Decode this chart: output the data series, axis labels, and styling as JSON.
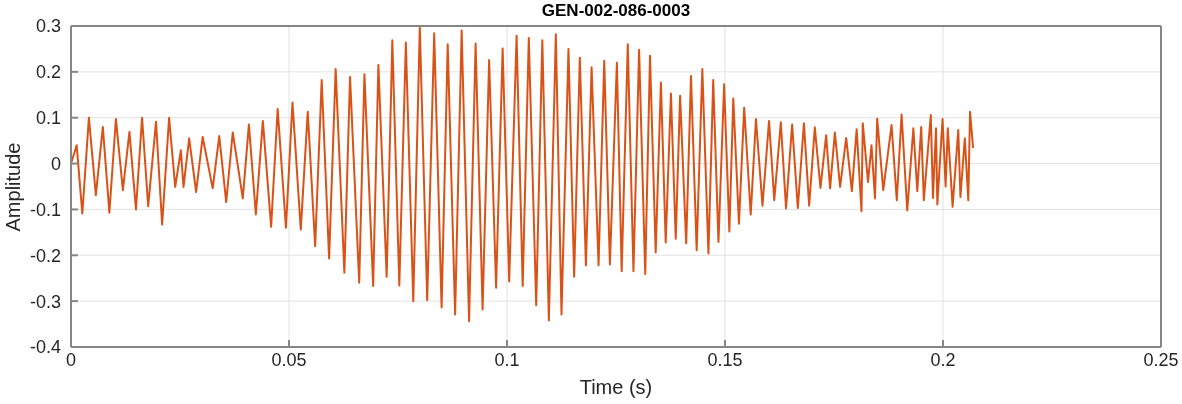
{
  "chart_data": {
    "type": "line",
    "title": "GEN-002-086-0003",
    "xlabel": "Time (s)",
    "ylabel": "Amplitude",
    "x": [
      0,
      0.0013,
      0.0026,
      0.0041,
      0.0057,
      0.0073,
      0.0088,
      0.0103,
      0.0119,
      0.0134,
      0.0149,
      0.0163,
      0.0177,
      0.0195,
      0.0209,
      0.0225,
      0.0239,
      0.0252,
      0.0258,
      0.0271,
      0.0287,
      0.0302,
      0.0325,
      0.034,
      0.0356,
      0.0371,
      0.0394,
      0.0408,
      0.0424,
      0.044,
      0.0459,
      0.0474,
      0.0493,
      0.0508,
      0.0527,
      0.0543,
      0.056,
      0.0575,
      0.0592,
      0.0607,
      0.0627,
      0.064,
      0.0661,
      0.0673,
      0.0693,
      0.0705,
      0.0724,
      0.0737,
      0.0753,
      0.0768,
      0.0785,
      0.08,
      0.0817,
      0.0833,
      0.085,
      0.0864,
      0.0881,
      0.0896,
      0.0913,
      0.0928,
      0.0944,
      0.0959,
      0.0975,
      0.099,
      0.1005,
      0.1022,
      0.1036,
      0.105,
      0.1067,
      0.1081,
      0.1096,
      0.1112,
      0.1125,
      0.1141,
      0.1154,
      0.1167,
      0.1181,
      0.1194,
      0.121,
      0.1223,
      0.1236,
      0.1252,
      0.1263,
      0.1277,
      0.129,
      0.1303,
      0.1317,
      0.1328,
      0.1341,
      0.1353,
      0.1364,
      0.1376,
      0.1387,
      0.1397,
      0.1411,
      0.1422,
      0.1435,
      0.1448,
      0.1462,
      0.1473,
      0.1485,
      0.1498,
      0.151,
      0.1519,
      0.1532,
      0.1544,
      0.1559,
      0.1571,
      0.1586,
      0.1601,
      0.1613,
      0.1628,
      0.164,
      0.1654,
      0.1667,
      0.1681,
      0.1693,
      0.1706,
      0.1719,
      0.1732,
      0.1741,
      0.1752,
      0.1764,
      0.1778,
      0.1791,
      0.1802,
      0.1813,
      0.1816,
      0.1828,
      0.1836,
      0.1844,
      0.1849,
      0.1863,
      0.1882,
      0.1894,
      0.1905,
      0.1918,
      0.1932,
      0.1941,
      0.195,
      0.1956,
      0.1972,
      0.1977,
      0.1984,
      0.1987,
      0.1999,
      0.2006,
      0.2011,
      0.2022,
      0.2035,
      0.204,
      0.205,
      0.2058,
      0.2062,
      0.2069
    ],
    "values": [
      0,
      0.04,
      -0.109,
      0.1,
      -0.069,
      0.08,
      -0.107,
      0.097,
      -0.058,
      0.069,
      -0.1,
      0.1,
      -0.093,
      0.091,
      -0.133,
      0.1,
      -0.051,
      0.029,
      -0.051,
      0.055,
      -0.062,
      0.058,
      -0.054,
      0.06,
      -0.084,
      0.068,
      -0.076,
      0.085,
      -0.111,
      0.093,
      -0.138,
      0.119,
      -0.14,
      0.133,
      -0.144,
      0.113,
      -0.18,
      0.182,
      -0.207,
      0.206,
      -0.238,
      0.189,
      -0.26,
      0.195,
      -0.267,
      0.215,
      -0.247,
      0.269,
      -0.266,
      0.264,
      -0.3,
      0.297,
      -0.298,
      0.284,
      -0.314,
      0.26,
      -0.329,
      0.29,
      -0.344,
      0.262,
      -0.318,
      0.226,
      -0.271,
      0.251,
      -0.257,
      0.279,
      -0.267,
      0.274,
      -0.309,
      0.269,
      -0.342,
      0.282,
      -0.329,
      0.25,
      -0.247,
      0.231,
      -0.222,
      0.21,
      -0.222,
      0.224,
      -0.22,
      0.22,
      -0.235,
      0.26,
      -0.235,
      0.248,
      -0.241,
      0.235,
      -0.194,
      0.177,
      -0.172,
      0.153,
      -0.164,
      0.148,
      -0.174,
      0.191,
      -0.189,
      0.206,
      -0.196,
      0.182,
      -0.171,
      0.173,
      -0.148,
      0.142,
      -0.131,
      0.122,
      -0.111,
      0.097,
      -0.092,
      0.093,
      -0.08,
      0.09,
      -0.098,
      0.085,
      -0.097,
      0.088,
      -0.092,
      0.079,
      -0.053,
      0.062,
      -0.054,
      0.068,
      -0.051,
      0.056,
      -0.06,
      0.075,
      -0.104,
      0.088,
      -0.04,
      0.04,
      -0.076,
      0.098,
      -0.058,
      0.084,
      -0.08,
      0.107,
      -0.102,
      0.077,
      -0.06,
      0.08,
      -0.08,
      0.106,
      -0.075,
      0.077,
      -0.089,
      0.097,
      -0.05,
      0.077,
      -0.094,
      0.073,
      -0.073,
      0.055,
      -0.08,
      0.113,
      0.034
    ],
    "color": "#d95319",
    "line_style": "solid",
    "xlim": [
      0,
      0.25
    ],
    "xticks": [
      0,
      0.05,
      0.1,
      0.15,
      0.2,
      0.25
    ],
    "ylim": [
      -0.4,
      0.3
    ],
    "yticks": [
      -0.4,
      -0.3,
      -0.2,
      -0.1,
      0,
      0.1,
      0.2,
      0.3
    ],
    "grid": true
  }
}
